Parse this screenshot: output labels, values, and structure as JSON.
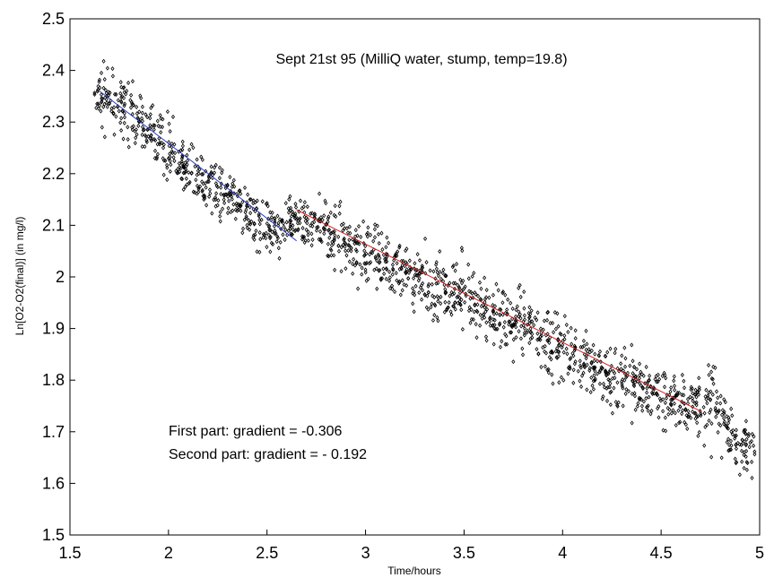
{
  "chart_data": {
    "type": "scatter",
    "title": "",
    "xlabel": "Time/hours",
    "ylabel": "Ln[O2-O2(final)] (in mg/l)",
    "xlim": [
      1.5,
      5
    ],
    "ylim": [
      1.5,
      2.5
    ],
    "xticks": [
      "1.5",
      "2",
      "2.5",
      "3",
      "3.5",
      "4",
      "4.5",
      "5"
    ],
    "yticks": [
      "1.5",
      "1.6",
      "1.7",
      "1.8",
      "1.9",
      "2",
      "2.1",
      "2.2",
      "2.3",
      "2.4",
      "2.5"
    ],
    "grid": false,
    "annotations": {
      "header": "Sept 21st 95 (MilliQ water, stump, temp=19.8)",
      "first_part": "First part: gradient = -0.306",
      "second_part": "Second part: gradient = - 0.192"
    },
    "scatter_series": {
      "marker": "open-diamond",
      "color": "#000000",
      "x": [
        1.65,
        1.7,
        1.75,
        1.8,
        1.85,
        1.9,
        1.95,
        2.0,
        2.05,
        2.1,
        2.15,
        2.2,
        2.25,
        2.3,
        2.35,
        2.4,
        2.45,
        2.5,
        2.55,
        2.6,
        2.65,
        2.7,
        2.75,
        2.8,
        2.85,
        2.9,
        2.95,
        3.0,
        3.05,
        3.1,
        3.15,
        3.2,
        3.25,
        3.3,
        3.35,
        3.4,
        3.45,
        3.5,
        3.55,
        3.6,
        3.65,
        3.7,
        3.75,
        3.8,
        3.85,
        3.9,
        3.95,
        4.0,
        4.05,
        4.1,
        4.15,
        4.2,
        4.25,
        4.3,
        4.35,
        4.4,
        4.45,
        4.5,
        4.55,
        4.6,
        4.65,
        4.7,
        4.75,
        4.8,
        4.85,
        4.9,
        4.95
      ],
      "y": [
        2.35,
        2.34,
        2.33,
        2.32,
        2.3,
        2.29,
        2.27,
        2.25,
        2.22,
        2.2,
        2.19,
        2.18,
        2.17,
        2.15,
        2.14,
        2.12,
        2.11,
        2.1,
        2.1,
        2.1,
        2.11,
        2.1,
        2.1,
        2.1,
        2.08,
        2.07,
        2.06,
        2.04,
        2.04,
        2.03,
        2.02,
        2.01,
        2.0,
        1.99,
        1.98,
        1.97,
        1.97,
        1.96,
        1.95,
        1.94,
        1.93,
        1.92,
        1.91,
        1.9,
        1.89,
        1.88,
        1.87,
        1.86,
        1.85,
        1.84,
        1.83,
        1.82,
        1.81,
        1.8,
        1.8,
        1.79,
        1.78,
        1.77,
        1.77,
        1.76,
        1.75,
        1.74,
        1.75,
        1.73,
        1.7,
        1.67,
        1.68
      ],
      "spread": [
        0.05,
        0.05,
        0.05,
        0.05,
        0.05,
        0.04,
        0.04,
        0.05,
        0.05,
        0.05,
        0.05,
        0.05,
        0.05,
        0.04,
        0.05,
        0.05,
        0.05,
        0.05,
        0.05,
        0.05,
        0.05,
        0.05,
        0.05,
        0.06,
        0.05,
        0.05,
        0.06,
        0.06,
        0.06,
        0.06,
        0.06,
        0.06,
        0.06,
        0.06,
        0.06,
        0.06,
        0.06,
        0.06,
        0.06,
        0.06,
        0.06,
        0.06,
        0.06,
        0.06,
        0.06,
        0.06,
        0.06,
        0.06,
        0.06,
        0.06,
        0.06,
        0.06,
        0.06,
        0.06,
        0.06,
        0.06,
        0.06,
        0.06,
        0.06,
        0.06,
        0.06,
        0.06,
        0.07,
        0.06,
        0.05,
        0.05,
        0.06
      ]
    },
    "fit_lines": [
      {
        "segment": "first",
        "color": "#2a3fbf",
        "x": [
          1.65,
          2.65
        ],
        "y": [
          2.36,
          2.07
        ]
      },
      {
        "segment": "second",
        "color": "#d62020",
        "x": [
          2.65,
          4.7
        ],
        "y": [
          2.13,
          1.74
        ]
      }
    ]
  }
}
